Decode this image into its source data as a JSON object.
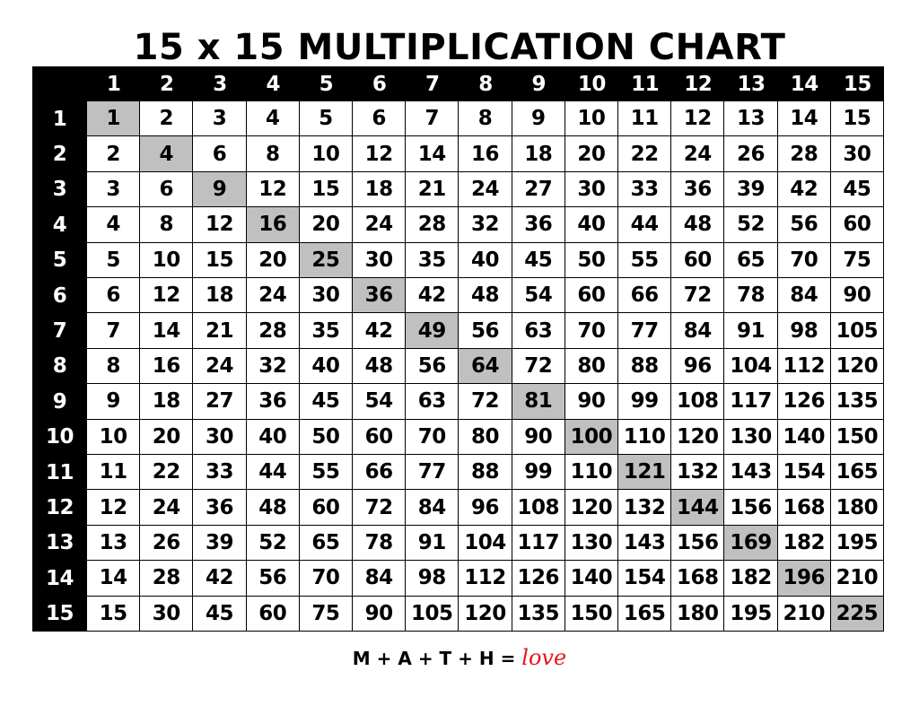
{
  "title": "15 x 15 MULTIPLICATION CHART",
  "column_headers": [
    "",
    "1",
    "2",
    "3",
    "4",
    "5",
    "6",
    "7",
    "8",
    "9",
    "10",
    "11",
    "12",
    "13",
    "14",
    "15"
  ],
  "row_headers": [
    "1",
    "2",
    "3",
    "4",
    "5",
    "6",
    "7",
    "8",
    "9",
    "10",
    "11",
    "12",
    "13",
    "14",
    "15"
  ],
  "rows": [
    [
      1,
      2,
      3,
      4,
      5,
      6,
      7,
      8,
      9,
      10,
      11,
      12,
      13,
      14,
      15
    ],
    [
      2,
      4,
      6,
      8,
      10,
      12,
      14,
      16,
      18,
      20,
      22,
      24,
      26,
      28,
      30
    ],
    [
      3,
      6,
      9,
      12,
      15,
      18,
      21,
      24,
      27,
      30,
      33,
      36,
      39,
      42,
      45
    ],
    [
      4,
      8,
      12,
      16,
      20,
      24,
      28,
      32,
      36,
      40,
      44,
      48,
      52,
      56,
      60
    ],
    [
      5,
      10,
      15,
      20,
      25,
      30,
      35,
      40,
      45,
      50,
      55,
      60,
      65,
      70,
      75
    ],
    [
      6,
      12,
      18,
      24,
      30,
      36,
      42,
      48,
      54,
      60,
      66,
      72,
      78,
      84,
      90
    ],
    [
      7,
      14,
      21,
      28,
      35,
      42,
      49,
      56,
      63,
      70,
      77,
      84,
      91,
      98,
      105
    ],
    [
      8,
      16,
      24,
      32,
      40,
      48,
      56,
      64,
      72,
      80,
      88,
      96,
      104,
      112,
      120
    ],
    [
      9,
      18,
      27,
      36,
      45,
      54,
      63,
      72,
      81,
      90,
      99,
      108,
      117,
      126,
      135
    ],
    [
      10,
      20,
      30,
      40,
      50,
      60,
      70,
      80,
      90,
      100,
      110,
      120,
      130,
      140,
      150
    ],
    [
      11,
      22,
      33,
      44,
      55,
      66,
      77,
      88,
      99,
      110,
      121,
      132,
      143,
      154,
      165
    ],
    [
      12,
      24,
      36,
      48,
      60,
      72,
      84,
      96,
      108,
      120,
      132,
      144,
      156,
      168,
      180
    ],
    [
      13,
      26,
      39,
      52,
      65,
      78,
      91,
      104,
      117,
      130,
      143,
      156,
      169,
      182,
      195
    ],
    [
      14,
      28,
      42,
      56,
      70,
      84,
      98,
      112,
      126,
      140,
      154,
      168,
      182,
      196,
      210
    ],
    [
      15,
      30,
      45,
      60,
      75,
      90,
      105,
      120,
      135,
      150,
      165,
      180,
      195,
      210,
      225
    ]
  ],
  "highlight_color": "#c0c0c0",
  "footer": {
    "text": "M + A + T + H = ",
    "love": "love",
    "love_color": "#e8141c"
  }
}
